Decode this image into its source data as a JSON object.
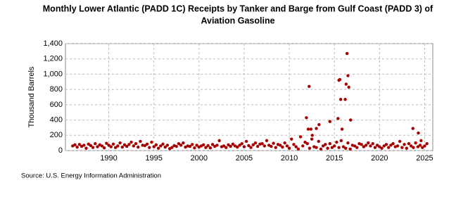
{
  "chart_data": {
    "type": "scatter",
    "title": [
      "Monthly Lower Atlantic (PADD 1C) Receipts by Tanker and Barge from Gulf Coast (PADD 3) of",
      "Aviation Gasoline"
    ],
    "ylabel": "Thousand Barrels",
    "source": "Source: U.S. Energy Information Administration",
    "xlim": [
      1985.2,
      2025.9
    ],
    "xticks": [
      1990,
      1995,
      2000,
      2005,
      2010,
      2015,
      2020,
      2025
    ],
    "ylim": [
      0,
      1400
    ],
    "yticks": [
      0,
      200,
      400,
      600,
      800,
      {
        "value": 1000,
        "label": "1,000"
      },
      {
        "value": 1200,
        "label": "1,200"
      },
      {
        "value": 1400,
        "label": "1,400"
      }
    ],
    "grid": true,
    "series": [
      {
        "color": "#a50000",
        "x": [
          1986.0,
          1986.25,
          1986.5,
          1986.75,
          1987.0,
          1987.25,
          1987.5,
          1987.75,
          1988.0,
          1988.25,
          1988.5,
          1988.75,
          1989.0,
          1989.25,
          1989.5,
          1989.75,
          1990.0,
          1990.25,
          1990.5,
          1990.75,
          1991.0,
          1991.25,
          1991.5,
          1991.75,
          1992.0,
          1992.25,
          1992.5,
          1992.75,
          1993.0,
          1993.25,
          1993.5,
          1993.75,
          1994.0,
          1994.25,
          1994.5,
          1994.75,
          1995.0,
          1995.25,
          1995.5,
          1995.75,
          1996.0,
          1996.25,
          1996.5,
          1996.75,
          1997.0,
          1997.25,
          1997.5,
          1997.75,
          1998.0,
          1998.25,
          1998.5,
          1998.75,
          1999.0,
          1999.25,
          1999.5,
          1999.75,
          2000.0,
          2000.25,
          2000.5,
          2000.75,
          2001.0,
          2001.25,
          2001.5,
          2001.75,
          2002.0,
          2002.25,
          2002.5,
          2002.75,
          2003.0,
          2003.25,
          2003.5,
          2003.75,
          2004.0,
          2004.25,
          2004.5,
          2004.75,
          2005.0,
          2005.25,
          2005.5,
          2005.75,
          2006.0,
          2006.25,
          2006.5,
          2006.75,
          2007.0,
          2007.25,
          2007.5,
          2007.75,
          2008.0,
          2008.25,
          2008.5,
          2008.75,
          2009.0,
          2009.25,
          2009.5,
          2009.75,
          2010.0,
          2010.25,
          2010.5,
          2010.75,
          2011.0,
          2011.25,
          2011.5,
          2011.75,
          2012.0,
          2012.25,
          2012.5,
          2012.75,
          2013.0,
          2013.25,
          2013.5,
          2013.75,
          2014.0,
          2014.25,
          2014.5,
          2014.75,
          2015.0,
          2015.25,
          2015.5,
          2015.75,
          2016.0,
          2016.25,
          2016.5,
          2016.75,
          2017.0,
          2017.25,
          2017.5,
          2017.75,
          2018.0,
          2018.25,
          2018.5,
          2018.75,
          2019.0,
          2019.25,
          2019.5,
          2019.75,
          2020.0,
          2020.25,
          2020.5,
          2020.75,
          2021.0,
          2021.25,
          2021.5,
          2021.75,
          2022.0,
          2022.25,
          2022.5,
          2022.75,
          2023.0,
          2023.25,
          2023.5,
          2023.75,
          2024.0,
          2024.25,
          2024.5,
          2024.75,
          2025.0,
          2025.25,
          2011.9,
          2012.1,
          2012.2,
          2012.4,
          2012.55,
          2013.0,
          2013.3,
          2014.5,
          2015.4,
          2015.5,
          2015.6,
          2015.7,
          2015.85,
          2016.2,
          2016.3,
          2016.4,
          2016.5,
          2016.6,
          2016.8,
          2023.7,
          2024.3,
          2024.6
        ],
        "values": [
          60,
          75,
          45,
          80,
          55,
          70,
          30,
          85,
          65,
          40,
          90,
          50,
          75,
          60,
          35,
          95,
          70,
          50,
          85,
          40,
          60,
          100,
          45,
          75,
          55,
          80,
          110,
          60,
          90,
          45,
          120,
          70,
          65,
          85,
          40,
          110,
          50,
          75,
          30,
          60,
          85,
          45,
          70,
          25,
          40,
          65,
          55,
          90,
          70,
          100,
          45,
          60,
          55,
          80,
          35,
          70,
          45,
          60,
          75,
          40,
          65,
          35,
          80,
          55,
          70,
          130,
          50,
          60,
          40,
          75,
          55,
          85,
          60,
          45,
          70,
          90,
          50,
          120,
          65,
          40,
          75,
          100,
          55,
          85,
          90,
          60,
          130,
          70,
          55,
          95,
          40,
          80,
          70,
          45,
          100,
          60,
          30,
          150,
          80,
          50,
          20,
          180,
          60,
          110,
          90,
          30,
          150,
          50,
          40,
          120,
          20,
          60,
          80,
          30,
          90,
          40,
          60,
          110,
          40,
          130,
          50,
          30,
          100,
          20,
          70,
          60,
          40,
          90,
          80,
          50,
          70,
          100,
          60,
          90,
          40,
          70,
          50,
          30,
          60,
          80,
          40,
          70,
          90,
          50,
          60,
          120,
          40,
          80,
          30,
          90,
          60,
          40,
          100,
          50,
          70,
          40,
          60,
          90,
          430,
          280,
          840,
          280,
          200,
          290,
          340,
          380,
          420,
          920,
          930,
          670,
          280,
          670,
          870,
          1270,
          980,
          830,
          400,
          290,
          230,
          130
        ]
      }
    ]
  }
}
